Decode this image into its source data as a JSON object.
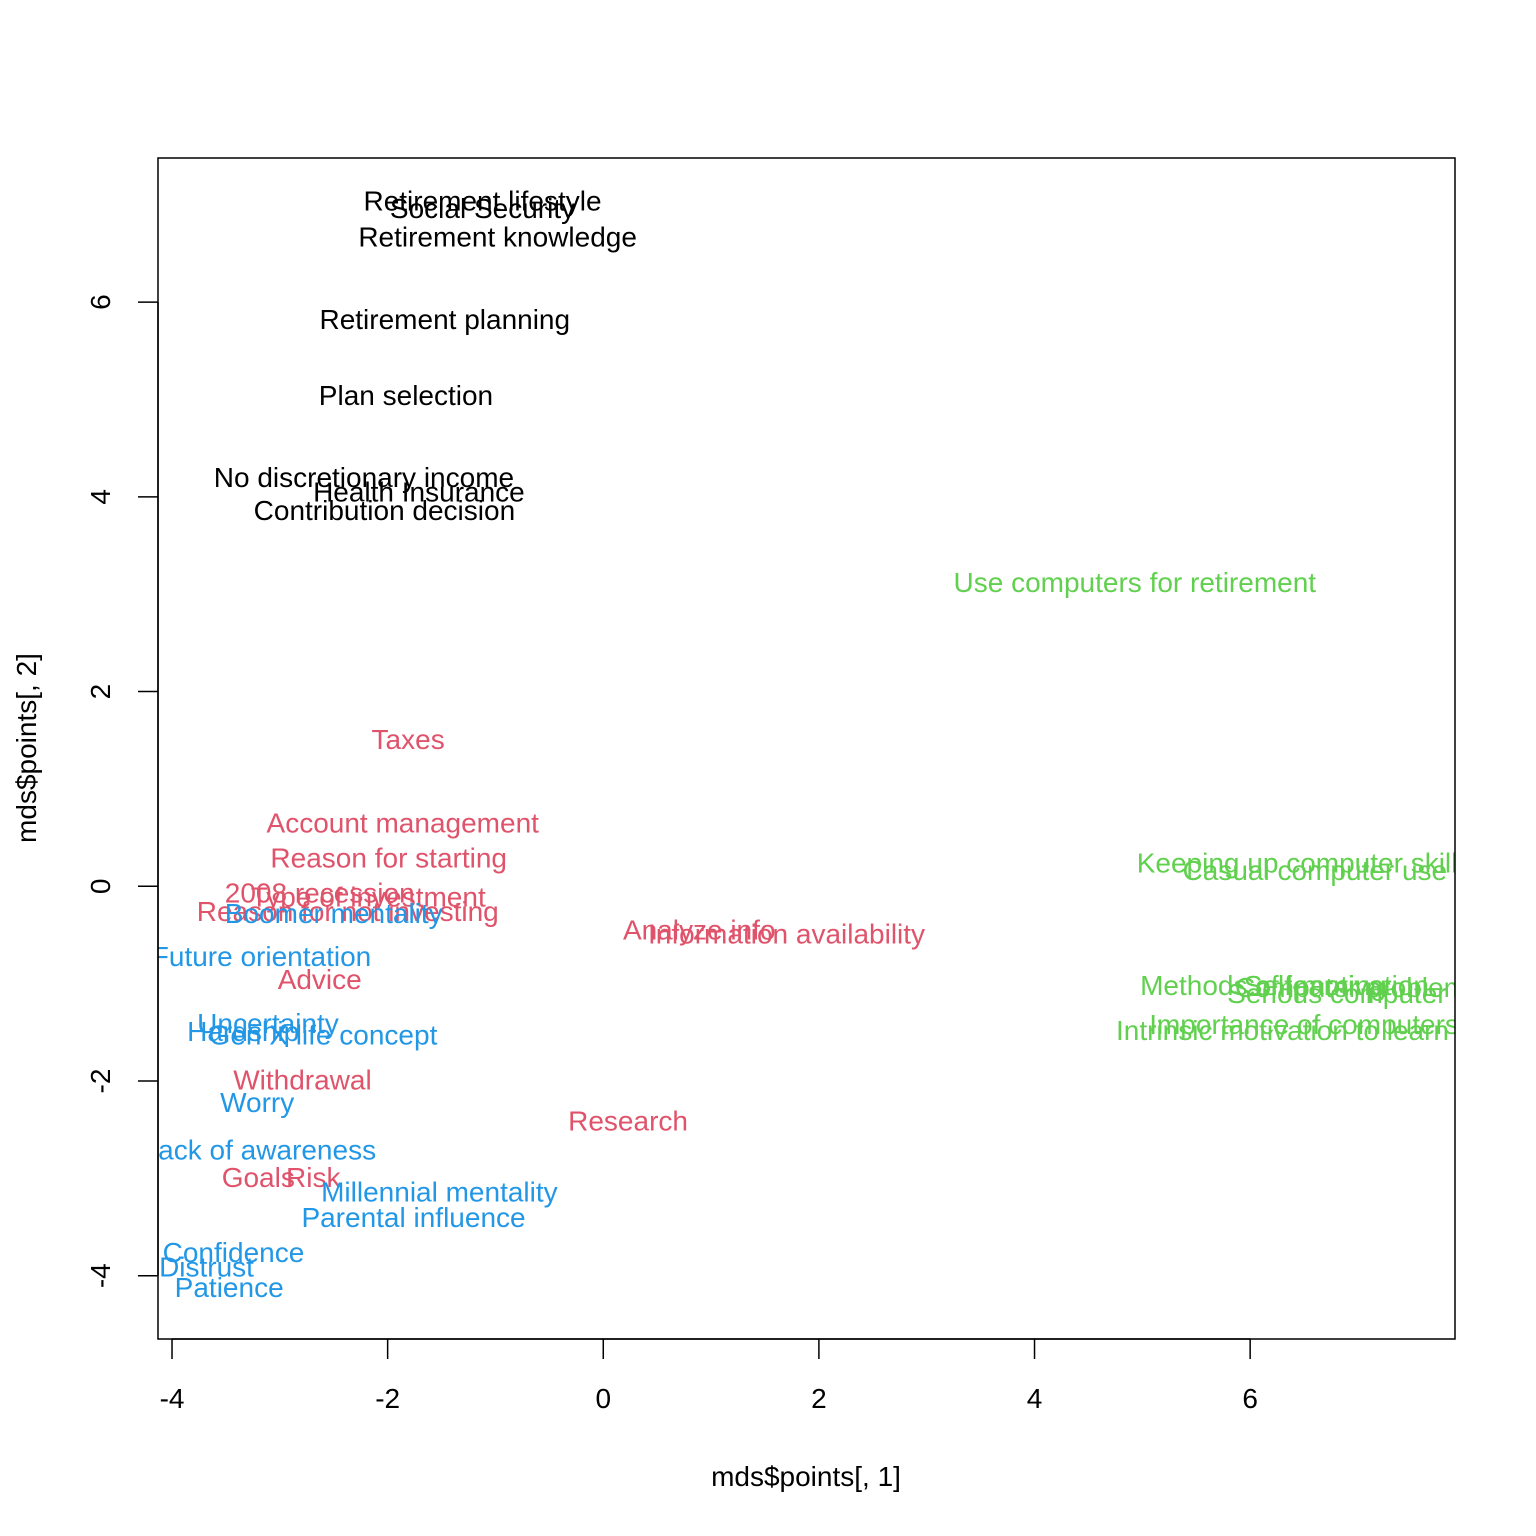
{
  "chart_data": {
    "type": "scatter",
    "xlabel": "mds$points[, 1]",
    "ylabel": "mds$points[, 2]",
    "xlim": [
      -4.13,
      7.9
    ],
    "ylim": [
      -4.65,
      7.48
    ],
    "x_ticks": [
      "-4",
      "-2",
      "0",
      "2",
      "4",
      "6"
    ],
    "y_ticks": [
      "-4",
      "-2",
      "0",
      "2",
      "4",
      "6"
    ],
    "grid": false,
    "legend": "none",
    "colors": {
      "black": "#000000",
      "red": "#DF536B",
      "green": "#61D04F",
      "blue": "#2297E6"
    },
    "points": [
      {
        "label": "Retirement lifestyle",
        "x": -1.12,
        "y": 7.04,
        "color": "black"
      },
      {
        "label": "Social Security",
        "x": -1.12,
        "y": 6.96,
        "color": "black"
      },
      {
        "label": "Retirement knowledge",
        "x": -0.98,
        "y": 6.67,
        "color": "black"
      },
      {
        "label": "Retirement planning",
        "x": -1.47,
        "y": 5.82,
        "color": "black"
      },
      {
        "label": "Plan selection",
        "x": -1.83,
        "y": 5.04,
        "color": "black"
      },
      {
        "label": "No discretionary income",
        "x": -2.22,
        "y": 4.2,
        "color": "black"
      },
      {
        "label": "Health Insurance",
        "x": -1.71,
        "y": 4.05,
        "color": "black"
      },
      {
        "label": "Contribution decision",
        "x": -2.03,
        "y": 3.86,
        "color": "black"
      },
      {
        "label": "Use computers for retirement",
        "x": 4.93,
        "y": 3.12,
        "color": "green"
      },
      {
        "label": "Taxes",
        "x": -1.81,
        "y": 1.51,
        "color": "red"
      },
      {
        "label": "Account management",
        "x": -1.86,
        "y": 0.65,
        "color": "red"
      },
      {
        "label": "Reason for starting",
        "x": -1.99,
        "y": 0.29,
        "color": "red"
      },
      {
        "label": "2008 recession",
        "x": -2.63,
        "y": -0.07,
        "color": "red"
      },
      {
        "label": "Type of investment",
        "x": -2.18,
        "y": -0.11,
        "color": "red"
      },
      {
        "label": "Reason for not investing",
        "x": -2.37,
        "y": -0.26,
        "color": "red"
      },
      {
        "label": "Boomer mentality",
        "x": -2.5,
        "y": -0.28,
        "color": "blue"
      },
      {
        "label": "Analyze info",
        "x": 0.89,
        "y": -0.45,
        "color": "red"
      },
      {
        "label": "Information availability",
        "x": 1.7,
        "y": -0.49,
        "color": "red"
      },
      {
        "label": "Future orientation",
        "x": -3.17,
        "y": -0.72,
        "color": "blue"
      },
      {
        "label": "Advice",
        "x": -2.63,
        "y": -0.96,
        "color": "red"
      },
      {
        "label": "Uncertainty",
        "x": -3.11,
        "y": -1.41,
        "color": "blue"
      },
      {
        "label": "Hardship",
        "x": -3.34,
        "y": -1.49,
        "color": "blue"
      },
      {
        "label": "Gen X life concept",
        "x": -2.6,
        "y": -1.53,
        "color": "blue"
      },
      {
        "label": "Withdrawal",
        "x": -2.79,
        "y": -1.99,
        "color": "red"
      },
      {
        "label": "Worry",
        "x": -3.21,
        "y": -2.22,
        "color": "blue"
      },
      {
        "label": "Research",
        "x": 0.23,
        "y": -2.41,
        "color": "red"
      },
      {
        "label": "Lack of awareness",
        "x": -3.19,
        "y": -2.71,
        "color": "blue"
      },
      {
        "label": "Goals",
        "x": -3.2,
        "y": -2.99,
        "color": "red"
      },
      {
        "label": "Risk",
        "x": -2.69,
        "y": -2.99,
        "color": "red"
      },
      {
        "label": "Millennial mentality",
        "x": -1.52,
        "y": -3.14,
        "color": "blue"
      },
      {
        "label": "Parental influence",
        "x": -1.76,
        "y": -3.4,
        "color": "blue"
      },
      {
        "label": "Confidence",
        "x": -3.43,
        "y": -3.76,
        "color": "blue"
      },
      {
        "label": "Distrust",
        "x": -3.68,
        "y": -3.91,
        "color": "blue"
      },
      {
        "label": "Patience",
        "x": -3.47,
        "y": -4.12,
        "color": "blue"
      },
      {
        "label": "Keeping up computer skills",
        "x": 6.5,
        "y": 0.24,
        "color": "green"
      },
      {
        "label": "Casual computer use",
        "x": 6.6,
        "y": 0.16,
        "color": "green"
      },
      {
        "label": "Methods of learning",
        "x": 6.12,
        "y": -1.02,
        "color": "green"
      },
      {
        "label": "Self-motivation",
        "x": 6.8,
        "y": -1.02,
        "color": "green"
      },
      {
        "label": "Computer problems",
        "x": 7.0,
        "y": -1.04,
        "color": "green"
      },
      {
        "label": "Serious computer use",
        "x": 7.05,
        "y": -1.1,
        "color": "green"
      },
      {
        "label": "Importance of computers",
        "x": 6.5,
        "y": -1.42,
        "color": "green"
      },
      {
        "label": "Intrinsic motivation to learn",
        "x": 6.3,
        "y": -1.48,
        "color": "green"
      }
    ]
  }
}
